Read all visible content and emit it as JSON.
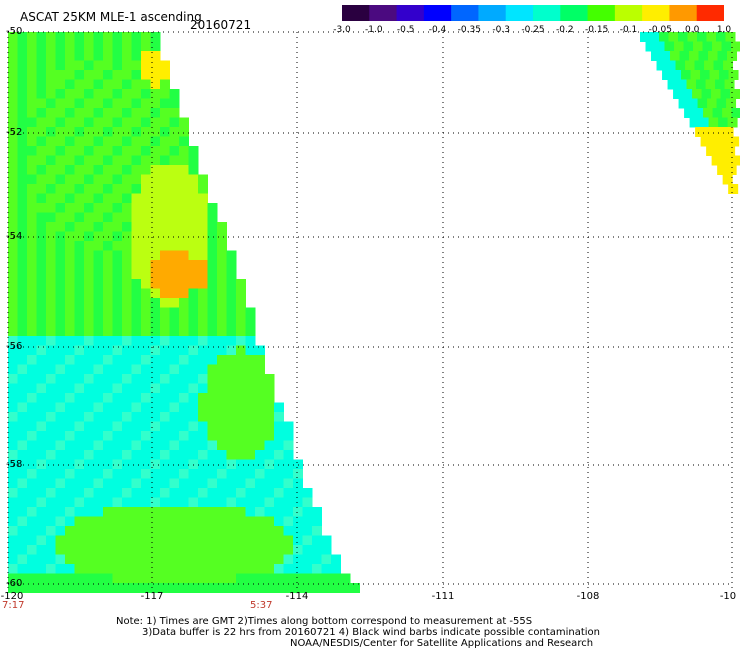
{
  "header": {
    "title": "ASCAT 25KM MLE-1 ascending",
    "date": "20160721"
  },
  "colorbar": {
    "labels": [
      "-3.0",
      "-1.0",
      "-0.5",
      "-0.4",
      "-0.35",
      "-0.3",
      "-0.25",
      "-0.2",
      "-0.15",
      "-0.1",
      "-0.05",
      "0.0",
      "1.0"
    ],
    "colors": [
      "#2a0040",
      "#4b0a80",
      "#3300cc",
      "#0000ff",
      "#0066ff",
      "#00aaff",
      "#00e5ff",
      "#00ffcc",
      "#00ff66",
      "#44ff00",
      "#bbff00",
      "#ffee00",
      "#ff9900",
      "#ff2a00"
    ]
  },
  "map": {
    "lat_labels": [
      "-50",
      "-52",
      "-54",
      "-56",
      "-58",
      "-60"
    ],
    "lon_labels": [
      "-120",
      "-117",
      "-114",
      "-111",
      "-108",
      "-10"
    ],
    "time_labels": [
      "7:17",
      "5:37"
    ],
    "colors": {
      "cyan": "#00ffe0",
      "light_cyan": "#33ffcc",
      "green": "#22ff44",
      "bright_green": "#55ff22",
      "yellow_green": "#bbff11",
      "yellow": "#ffee00",
      "orange": "#ffaa00",
      "grid": "#000000"
    }
  },
  "notes": {
    "line1": "Note: 1) Times are GMT 2)Times along bottom correspond to measurement at -55S",
    "line2": "3)Data buffer is 22 hrs from 20160721 4) Black wind barbs indicate possible contamination",
    "line3": "NOAA/NESDIS/Center for Satellite Applications and Research"
  }
}
